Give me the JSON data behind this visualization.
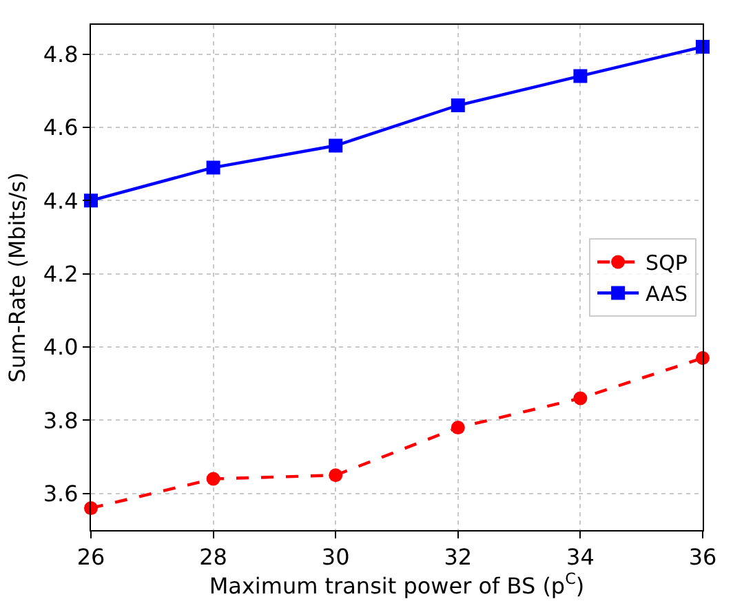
{
  "chart_data": {
    "type": "line",
    "xlabel": "Maximum transit power of BS (p$^{C}$)",
    "ylabel": "Sum-Rate (Mbits/s)",
    "x": [
      26,
      28,
      30,
      32,
      34,
      36
    ],
    "series": [
      {
        "name": "SQP",
        "color": "#ff0000",
        "values": [
          3.56,
          3.64,
          3.65,
          3.78,
          3.86,
          3.97
        ],
        "marker": "circle",
        "line_style": "dashed"
      },
      {
        "name": "AAS",
        "color": "#0000ff",
        "values": [
          4.4,
          4.49,
          4.55,
          4.66,
          4.74,
          4.82
        ],
        "marker": "square",
        "line_style": "solid"
      }
    ],
    "xlim": [
      26,
      36
    ],
    "xticks": [
      26,
      28,
      30,
      32,
      34,
      36
    ],
    "ylim": [
      3.5,
      4.88
    ],
    "yticks": [
      3.6,
      3.8,
      {
        "value": 4,
        "label": "4.0"
      },
      4.2,
      4.4,
      4.6,
      4.8
    ],
    "grid": true,
    "legend": "right"
  }
}
